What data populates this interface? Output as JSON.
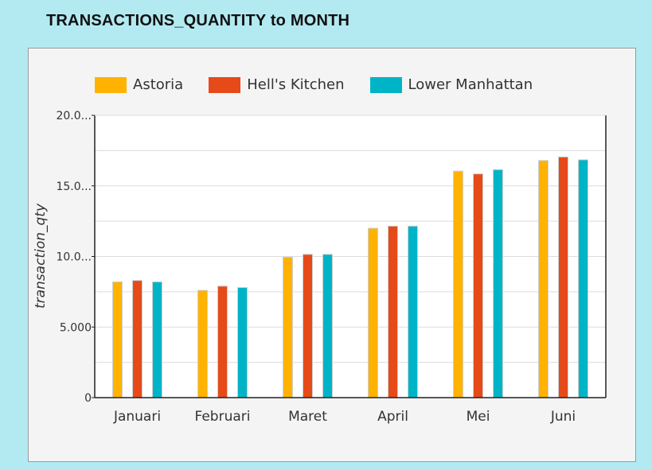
{
  "title": "TRANSACTIONS_QUANTITY to MONTH",
  "colors": {
    "page_background": "#b3eaf2",
    "panel_background": "#f4f4f4",
    "plot_background": "#ffffff",
    "Astoria": "#ffb300",
    "Hell's Kitchen": "#e64a19",
    "Lower Manhattan": "#00b4c8"
  },
  "chart_data": {
    "type": "bar",
    "title": "TRANSACTIONS_QUANTITY to MONTH",
    "xlabel": "",
    "ylabel": "transaction_qty",
    "categories": [
      "Januari",
      "Februari",
      "Maret",
      "April",
      "Mei",
      "Juni"
    ],
    "series": [
      {
        "name": "Astoria",
        "values": [
          8200,
          7600,
          9950,
          12000,
          16050,
          16800
        ]
      },
      {
        "name": "Hell's Kitchen",
        "values": [
          8300,
          7900,
          10150,
          12150,
          15850,
          17050
        ]
      },
      {
        "name": "Lower Manhattan",
        "values": [
          8200,
          7800,
          10150,
          12150,
          16150,
          16850
        ]
      }
    ],
    "ylim": [
      0,
      20000
    ],
    "ytick_values": [
      0,
      5000,
      10000,
      15000,
      20000
    ],
    "ytick_labels": [
      "0",
      "5.000",
      "10.0...",
      "15.0...",
      "20.0..."
    ],
    "grid": true,
    "legend_position": "top"
  }
}
